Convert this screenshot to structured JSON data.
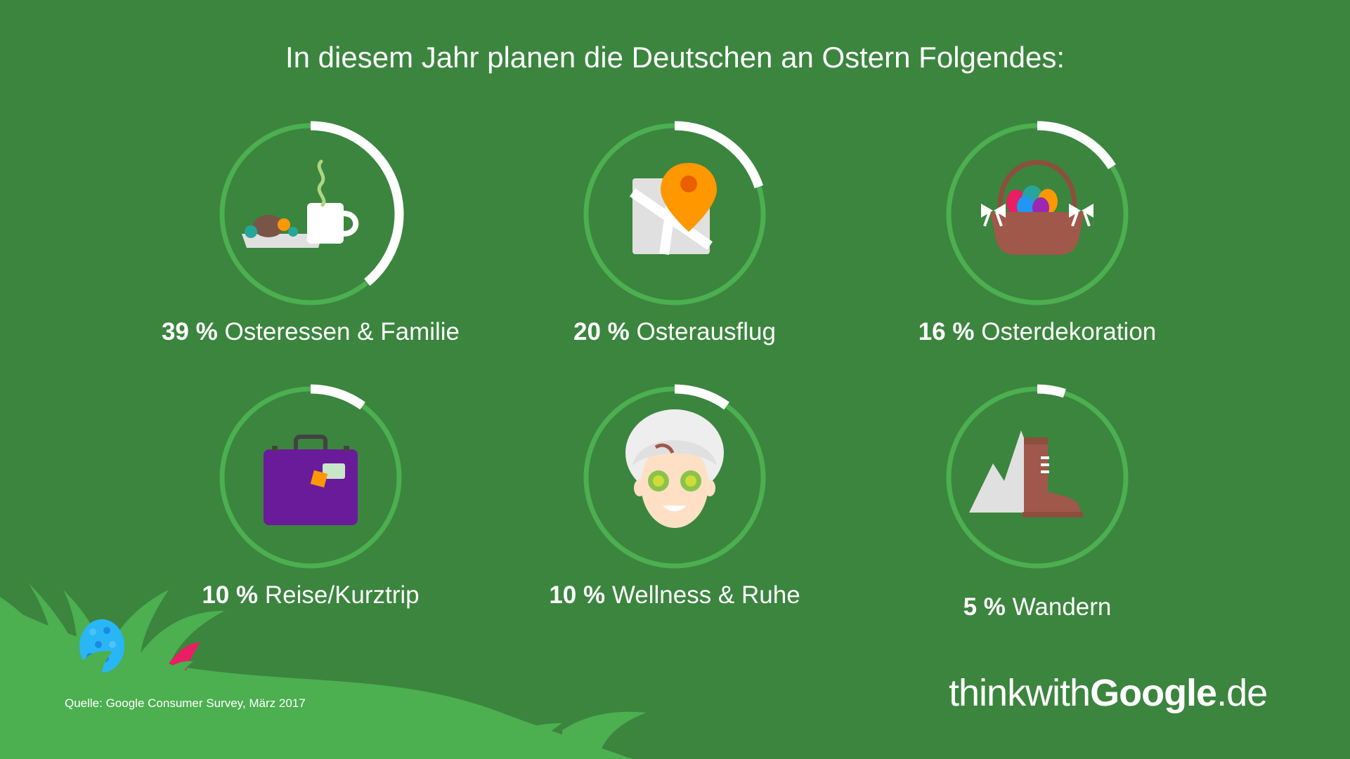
{
  "chart_data": {
    "type": "donut-grid",
    "title": "In diesem Jahr planen die Deutschen an Ostern Folgendes:",
    "unit": "%",
    "items": [
      {
        "value": 39,
        "value_label": "39 %",
        "label": "Osteressen & Familie",
        "icon": "breakfast-coffee-icon"
      },
      {
        "value": 20,
        "value_label": "20 %",
        "label": "Osterausflug",
        "icon": "map-pin-icon"
      },
      {
        "value": 16,
        "value_label": "16 %",
        "label": "Osterdekoration",
        "icon": "easter-basket-icon"
      },
      {
        "value": 10,
        "value_label": "10 %",
        "label": "Reise/Kurztrip",
        "icon": "suitcase-icon"
      },
      {
        "value": 10,
        "value_label": "10 %",
        "label": "Wellness & Ruhe",
        "icon": "spa-face-icon"
      },
      {
        "value": 5,
        "value_label": "5 %",
        "label": "Wandern",
        "icon": "hiking-boot-icon"
      }
    ]
  },
  "source": "Quelle: Google Consumer Survey, März 2017",
  "logo": {
    "part1": "thinkwith",
    "part2": "Google",
    "part3": ".de"
  },
  "colors": {
    "background": "#3b853e",
    "ring_track": "#4caf50",
    "ring_value": "#ffffff",
    "grass": "#4caf50"
  }
}
